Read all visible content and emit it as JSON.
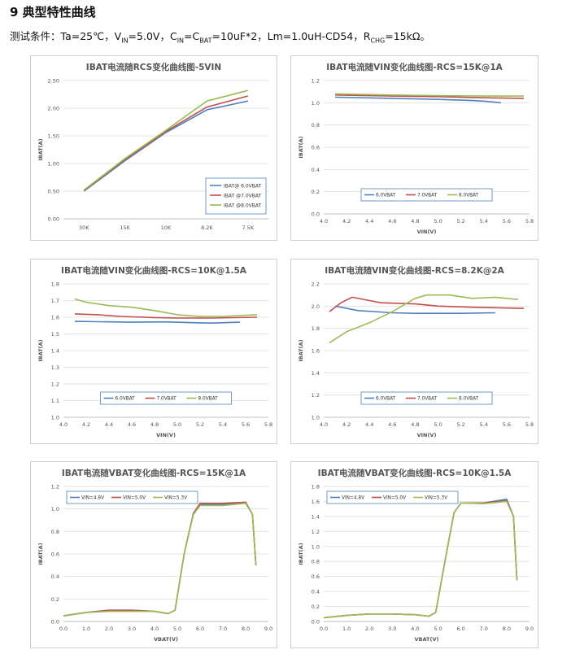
{
  "section_title": "9 典型特性曲线",
  "conditions": {
    "prefix": "测试条件：Ta=25℃，V",
    "vin_sub": "IN",
    "vin_tail": "=5.0V，C",
    "cin_sub": "IN",
    "eq": "=C",
    "cbat_sub": "BAT",
    "cap_tail": "=10uF*2，Lm=1.0uH-CD54，R",
    "rchg_sub": "CHG",
    "tail": "=15kΩ。"
  },
  "colors": {
    "blue": "#4f81bd",
    "red": "#c0504d",
    "green": "#9bbb59"
  },
  "chart_data": [
    {
      "type": "line",
      "title": "IBAT电流随RCS变化曲线图-5VIN",
      "xlabel": "",
      "ylabel": "IBAT(A)",
      "categories": [
        "30K",
        "15K",
        "10K",
        "8.2K",
        "7.5K"
      ],
      "ylim": [
        0,
        2.5
      ],
      "yticks": [
        "0.00",
        "0.50",
        "1.00",
        "1.50",
        "2.00",
        "2.50"
      ],
      "legend_position": "bottom-right",
      "series": [
        {
          "name": "IBAT@ 6.0VBAT",
          "color": "blue",
          "values": [
            0.5,
            1.05,
            1.56,
            1.97,
            2.13
          ]
        },
        {
          "name": "IBAT @7.0VBAT",
          "color": "red",
          "values": [
            0.51,
            1.07,
            1.58,
            2.02,
            2.22
          ]
        },
        {
          "name": "IBAT @8.0VBAT",
          "color": "green",
          "values": [
            0.52,
            1.09,
            1.6,
            2.13,
            2.32
          ]
        }
      ]
    },
    {
      "type": "line",
      "title": "IBAT电流随VIN变化曲线图-RCS=15K@1A",
      "xlabel": "VIN(V)",
      "ylabel": "IBAT(A)",
      "xlim": [
        4.0,
        5.8
      ],
      "xticks": [
        "4.0",
        "4.2",
        "4.4",
        "4.6",
        "4.8",
        "5.0",
        "5.2",
        "5.4",
        "5.6",
        "5.8"
      ],
      "ylim": [
        0,
        1.2
      ],
      "yticks": [
        "0.0",
        "0.2",
        "0.4",
        "0.6",
        "0.8",
        "1.0",
        "1.2"
      ],
      "legend_position": "bottom-center",
      "series": [
        {
          "name": "6.0VBAT",
          "color": "blue",
          "x": [
            4.1,
            4.6,
            5.0,
            5.3,
            5.4,
            5.55
          ],
          "values": [
            1.05,
            1.04,
            1.03,
            1.02,
            1.015,
            1.0
          ]
        },
        {
          "name": "7.0VBAT",
          "color": "red",
          "x": [
            4.1,
            4.6,
            5.0,
            5.4,
            5.75
          ],
          "values": [
            1.07,
            1.06,
            1.055,
            1.045,
            1.04
          ]
        },
        {
          "name": "8.0VBAT",
          "color": "green",
          "x": [
            4.1,
            4.6,
            5.0,
            5.4,
            5.75
          ],
          "values": [
            1.08,
            1.07,
            1.065,
            1.06,
            1.06
          ]
        }
      ]
    },
    {
      "type": "line",
      "title": "IBAT电流随VIN变化曲线图-RCS=10K@1.5A",
      "xlabel": "VIN(V)",
      "ylabel": "IBAT(A)",
      "xlim": [
        4.0,
        5.8
      ],
      "xticks": [
        "4.0",
        "4.2",
        "4.4",
        "4.6",
        "4.8",
        "5.0",
        "5.2",
        "5.4",
        "5.6",
        "5.8"
      ],
      "ylim": [
        1.0,
        1.8
      ],
      "yticks": [
        "1.0",
        "1.1",
        "1.2",
        "1.3",
        "1.4",
        "1.5",
        "1.6",
        "1.7",
        "1.8"
      ],
      "legend_position": "bottom-center",
      "series": [
        {
          "name": "6.0VBAT",
          "color": "blue",
          "x": [
            4.1,
            4.3,
            4.6,
            4.9,
            5.1,
            5.3,
            5.55
          ],
          "values": [
            1.575,
            1.573,
            1.57,
            1.572,
            1.568,
            1.565,
            1.57
          ]
        },
        {
          "name": "7.0VBAT",
          "color": "red",
          "x": [
            4.1,
            4.3,
            4.5,
            4.8,
            5.0,
            5.3,
            5.7
          ],
          "values": [
            1.62,
            1.615,
            1.605,
            1.598,
            1.595,
            1.595,
            1.6
          ]
        },
        {
          "name": "8.0VBAT",
          "color": "green",
          "x": [
            4.1,
            4.2,
            4.4,
            4.6,
            4.8,
            5.0,
            5.2,
            5.4,
            5.7
          ],
          "values": [
            1.71,
            1.69,
            1.67,
            1.66,
            1.64,
            1.615,
            1.605,
            1.605,
            1.615
          ]
        }
      ]
    },
    {
      "type": "line",
      "title": "IBAT电流随VIN变化曲线图-RCS=8.2K@2A",
      "xlabel": "VIN(V)",
      "ylabel": "IBAT(A)",
      "xlim": [
        4.0,
        5.8
      ],
      "xticks": [
        "4.0",
        "4.2",
        "4.4",
        "4.6",
        "4.8",
        "5.0",
        "5.2",
        "5.4",
        "5.6",
        "5.8"
      ],
      "ylim": [
        1.0,
        2.2
      ],
      "yticks": [
        "1.0",
        "1.2",
        "1.4",
        "1.6",
        "1.8",
        "2.0",
        "2.2"
      ],
      "legend_position": "bottom-center",
      "series": [
        {
          "name": "6.0VBAT",
          "color": "blue",
          "x": [
            4.1,
            4.3,
            4.6,
            4.8,
            5.0,
            5.2,
            5.5
          ],
          "values": [
            2.0,
            1.96,
            1.94,
            1.935,
            1.935,
            1.935,
            1.94
          ]
        },
        {
          "name": "7.0VBAT",
          "color": "red",
          "x": [
            4.05,
            4.15,
            4.25,
            4.35,
            4.5,
            4.8,
            5.0,
            5.3,
            5.75
          ],
          "values": [
            1.95,
            2.03,
            2.08,
            2.06,
            2.03,
            2.02,
            2.0,
            1.99,
            1.98
          ]
        },
        {
          "name": "8.0VBAT",
          "color": "green",
          "x": [
            4.05,
            4.2,
            4.4,
            4.6,
            4.8,
            4.9,
            5.1,
            5.3,
            5.5,
            5.7
          ],
          "values": [
            1.67,
            1.77,
            1.85,
            1.95,
            2.07,
            2.1,
            2.1,
            2.07,
            2.08,
            2.06
          ]
        }
      ]
    },
    {
      "type": "line",
      "title": "IBAT电流随VBAT变化曲线图-RCS=15K@1A",
      "xlabel": "VBAT(V)",
      "ylabel": "IBAT(A)",
      "xlim": [
        0,
        9
      ],
      "xticks": [
        "0.0",
        "1.0",
        "2.0",
        "3.0",
        "4.0",
        "5.0",
        "6.0",
        "7.0",
        "8.0",
        "9.0"
      ],
      "ylim": [
        0,
        1.2
      ],
      "yticks": [
        "0.0",
        "0.2",
        "0.4",
        "0.6",
        "0.8",
        "1.0",
        "1.2"
      ],
      "legend_position": "top-left",
      "series": [
        {
          "name": "VIN=4.8V",
          "color": "blue",
          "x": [
            0,
            1,
            2,
            3,
            4,
            4.6,
            4.9,
            5.3,
            5.7,
            6.0,
            7.0,
            8.0,
            8.3,
            8.45
          ],
          "values": [
            0.05,
            0.08,
            0.1,
            0.1,
            0.09,
            0.07,
            0.1,
            0.6,
            0.95,
            1.04,
            1.04,
            1.06,
            0.95,
            0.5
          ]
        },
        {
          "name": "VIN=5.0V",
          "color": "red",
          "x": [
            0,
            1,
            2,
            3,
            4,
            4.6,
            4.9,
            5.3,
            5.7,
            6.0,
            7.0,
            8.0,
            8.3,
            8.45
          ],
          "values": [
            0.05,
            0.08,
            0.1,
            0.1,
            0.09,
            0.07,
            0.1,
            0.6,
            0.96,
            1.05,
            1.05,
            1.06,
            0.95,
            0.5
          ]
        },
        {
          "name": "VIN=5.3V",
          "color": "green",
          "x": [
            0,
            1,
            2,
            3,
            4,
            4.6,
            4.9,
            5.3,
            5.7,
            6.0,
            7.0,
            8.0,
            8.3,
            8.45
          ],
          "values": [
            0.05,
            0.08,
            0.09,
            0.09,
            0.09,
            0.07,
            0.1,
            0.6,
            0.95,
            1.03,
            1.03,
            1.05,
            0.95,
            0.5
          ]
        }
      ]
    },
    {
      "type": "line",
      "title": "IBAT电流随VBAT变化曲线图-RCS=10K@1.5A",
      "xlabel": "VBAT(V)",
      "ylabel": "IBAT(A)",
      "xlim": [
        0,
        9
      ],
      "xticks": [
        "0.0",
        "1.0",
        "2.0",
        "3.0",
        "4.0",
        "5.0",
        "6.0",
        "7.0",
        "8.0",
        "9.0"
      ],
      "ylim": [
        0,
        1.8
      ],
      "yticks": [
        "0.0",
        "0.2",
        "0.4",
        "0.6",
        "0.8",
        "1.0",
        "1.2",
        "1.4",
        "1.6",
        "1.8"
      ],
      "legend_position": "top-left",
      "series": [
        {
          "name": "VIN=4.8V",
          "color": "blue",
          "x": [
            0,
            1,
            2,
            3,
            4,
            4.6,
            4.9,
            5.3,
            5.7,
            6.0,
            7.0,
            8.0,
            8.3,
            8.45
          ],
          "values": [
            0.05,
            0.08,
            0.1,
            0.1,
            0.09,
            0.07,
            0.12,
            0.8,
            1.45,
            1.58,
            1.58,
            1.63,
            1.4,
            0.55
          ]
        },
        {
          "name": "VIN=5.0V",
          "color": "red",
          "x": [
            0,
            1,
            2,
            3,
            4,
            4.6,
            4.9,
            5.3,
            5.7,
            6.0,
            7.0,
            8.0,
            8.3,
            8.45
          ],
          "values": [
            0.05,
            0.08,
            0.1,
            0.1,
            0.09,
            0.07,
            0.12,
            0.8,
            1.45,
            1.58,
            1.58,
            1.61,
            1.4,
            0.55
          ]
        },
        {
          "name": "VIN=5.3V",
          "color": "green",
          "x": [
            0,
            1,
            2,
            3,
            4,
            4.6,
            4.9,
            5.3,
            5.7,
            6.0,
            7.0,
            8.0,
            8.3,
            8.45
          ],
          "values": [
            0.05,
            0.08,
            0.1,
            0.1,
            0.09,
            0.07,
            0.12,
            0.8,
            1.45,
            1.58,
            1.57,
            1.6,
            1.4,
            0.55
          ]
        }
      ]
    }
  ]
}
